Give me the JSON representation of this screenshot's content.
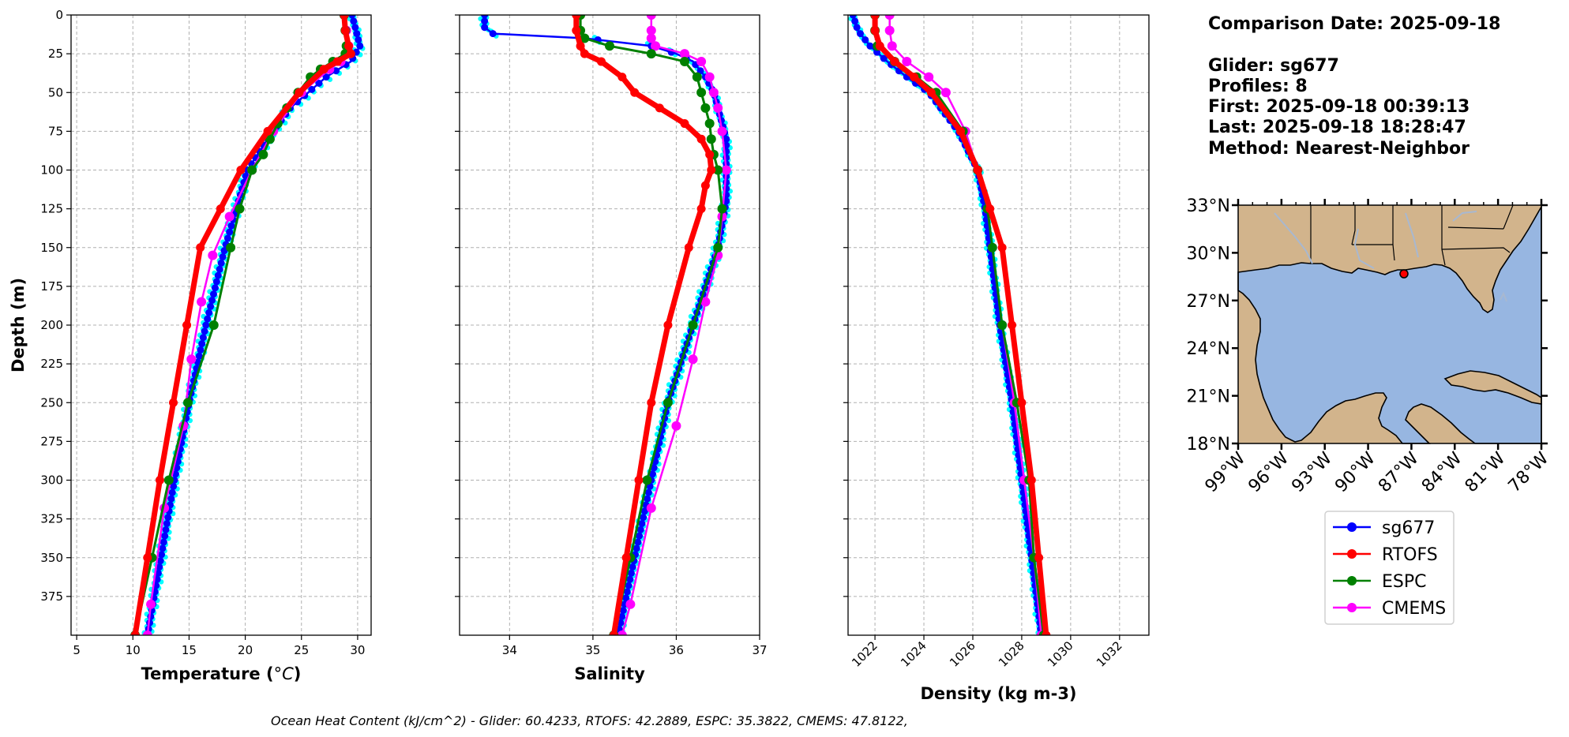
{
  "info": {
    "comparison_date": "Comparison Date: 2025-09-18",
    "glider": "Glider: sg677",
    "profiles": "Profiles: 8",
    "first": "First: 2025-09-18 00:39:13",
    "last": "Last: 2025-09-18 18:28:47",
    "method": "Method: Nearest-Neighbor"
  },
  "footer": "Ocean Heat Content (kJ/cm^2) - Glider: 60.4233,  RTOFS: 42.2889,  ESPC: 35.3822,  CMEMS: 47.8122,",
  "colors": {
    "sg677": "#0000ff",
    "RTOFS": "#ff0000",
    "ESPC": "#008000",
    "CMEMS": "#ff00ff",
    "glider_raw": "#00ffff",
    "land": "#d2b48c",
    "ocean": "#97b6e1"
  },
  "legend": [
    "sg677",
    "RTOFS",
    "ESPC",
    "CMEMS"
  ],
  "map": {
    "lat_ticks": [
      "33°N",
      "30°N",
      "27°N",
      "24°N",
      "21°N",
      "18°N"
    ],
    "lon_ticks": [
      "99°W",
      "96°W",
      "93°W",
      "90°W",
      "87°W",
      "84°W",
      "81°W",
      "78°W"
    ],
    "lon_range": [
      -99,
      -78
    ],
    "lat_range": [
      18,
      33
    ],
    "glider_location": [
      -87.5,
      28.9
    ]
  },
  "chart_data": [
    {
      "type": "line",
      "xlabel": "Temperature (°C)",
      "ylabel": "Depth (m)",
      "xlim": [
        4.5,
        31.2
      ],
      "ylim": [
        400,
        0
      ],
      "xticks": [
        5,
        10,
        15,
        20,
        25,
        30
      ],
      "yticks": [
        0,
        25,
        50,
        75,
        100,
        125,
        150,
        175,
        200,
        225,
        250,
        275,
        300,
        325,
        350,
        375
      ],
      "grid": true,
      "series": [
        {
          "name": "sg677",
          "depth": [
            0,
            20,
            30,
            40,
            60,
            80,
            100,
            120,
            150,
            200,
            250,
            300,
            350,
            400
          ],
          "values": [
            29.5,
            30.2,
            29.4,
            27.2,
            24.0,
            22.0,
            20.2,
            19.4,
            18.2,
            16.5,
            15.0,
            13.7,
            12.5,
            11.3
          ]
        },
        {
          "name": "RTOFS",
          "depth": [
            0,
            10,
            20,
            25,
            30,
            35,
            50,
            75,
            100,
            125,
            150,
            200,
            250,
            300,
            350,
            400
          ],
          "values": [
            28.8,
            28.9,
            29.2,
            29.4,
            28.2,
            27.0,
            24.8,
            22.0,
            19.6,
            17.8,
            16.0,
            14.8,
            13.6,
            12.4,
            11.3,
            10.2
          ]
        },
        {
          "name": "ESPC",
          "depth": [
            0,
            10,
            20,
            25,
            30,
            35,
            40,
            50,
            60,
            70,
            80,
            90,
            100,
            125,
            150,
            200,
            250,
            300,
            350,
            400
          ],
          "values": [
            28.8,
            28.9,
            29.0,
            28.9,
            27.8,
            26.7,
            25.8,
            24.7,
            23.7,
            22.9,
            22.2,
            21.6,
            20.6,
            19.5,
            18.7,
            17.2,
            14.9,
            13.2,
            11.7,
            10.2
          ]
        },
        {
          "name": "CMEMS",
          "depth": [
            0,
            10,
            20,
            25,
            30,
            35,
            50,
            75,
            100,
            130,
            155,
            185,
            222,
            265,
            318,
            380,
            400
          ],
          "values": [
            28.8,
            29.0,
            29.2,
            29.3,
            28.5,
            27.5,
            25.0,
            22.5,
            20.6,
            18.6,
            17.1,
            16.1,
            15.2,
            14.5,
            12.8,
            11.6,
            11.3
          ]
        }
      ]
    },
    {
      "type": "line",
      "xlabel": "Salinity",
      "ylabel": "",
      "xlim": [
        33.4,
        37.0
      ],
      "ylim": [
        400,
        0
      ],
      "xticks": [
        34,
        35,
        36,
        37
      ],
      "yticks": [
        0,
        25,
        50,
        75,
        100,
        125,
        150,
        175,
        200,
        225,
        250,
        275,
        300,
        325,
        350,
        375
      ],
      "grid": true,
      "series": [
        {
          "name": "sg677",
          "depth": [
            0,
            8,
            12,
            15,
            20,
            25,
            30,
            40,
            50,
            60,
            80,
            100,
            120,
            150,
            200,
            250,
            300,
            350,
            400
          ],
          "values": [
            33.7,
            33.7,
            33.8,
            34.9,
            35.7,
            36.0,
            36.2,
            36.35,
            36.45,
            36.5,
            36.6,
            36.6,
            36.6,
            36.5,
            36.2,
            35.9,
            35.7,
            35.5,
            35.3
          ]
        },
        {
          "name": "RTOFS",
          "depth": [
            0,
            10,
            20,
            25,
            30,
            40,
            50,
            60,
            70,
            80,
            90,
            100,
            110,
            125,
            150,
            200,
            250,
            300,
            350,
            400
          ],
          "values": [
            34.8,
            34.8,
            34.85,
            34.9,
            35.1,
            35.35,
            35.5,
            35.8,
            36.1,
            36.3,
            36.4,
            36.42,
            36.35,
            36.3,
            36.15,
            35.9,
            35.7,
            35.55,
            35.4,
            35.25
          ]
        },
        {
          "name": "ESPC",
          "depth": [
            0,
            10,
            15,
            20,
            25,
            30,
            40,
            50,
            60,
            70,
            80,
            90,
            100,
            125,
            150,
            200,
            250,
            300,
            350,
            400
          ],
          "values": [
            34.85,
            34.85,
            34.9,
            35.2,
            35.7,
            36.1,
            36.25,
            36.3,
            36.35,
            36.4,
            36.42,
            36.45,
            36.5,
            36.55,
            36.5,
            36.2,
            35.9,
            35.65,
            35.45,
            35.25
          ]
        },
        {
          "name": "CMEMS",
          "depth": [
            0,
            10,
            15,
            20,
            25,
            30,
            40,
            50,
            60,
            75,
            100,
            130,
            155,
            185,
            222,
            265,
            318,
            380,
            400
          ],
          "values": [
            35.7,
            35.7,
            35.7,
            35.75,
            36.1,
            36.3,
            36.4,
            36.45,
            36.5,
            36.55,
            36.6,
            36.55,
            36.5,
            36.35,
            36.2,
            36.0,
            35.7,
            35.45,
            35.35
          ]
        }
      ]
    },
    {
      "type": "line",
      "xlabel": "Density (kg m-3)",
      "ylabel": "",
      "xlim": [
        1020.9,
        1033.2
      ],
      "ylim": [
        400,
        0
      ],
      "xticks": [
        1022,
        1024,
        1026,
        1028,
        1030,
        1032
      ],
      "yticks": [
        0,
        25,
        50,
        75,
        100,
        125,
        150,
        175,
        200,
        225,
        250,
        275,
        300,
        325,
        350,
        375
      ],
      "grid": true,
      "series": [
        {
          "name": "sg677",
          "depth": [
            0,
            10,
            20,
            30,
            40,
            50,
            75,
            100,
            125,
            150,
            200,
            250,
            300,
            350,
            400
          ],
          "values": [
            1021.1,
            1021.3,
            1021.8,
            1022.5,
            1023.3,
            1024.2,
            1025.4,
            1026.2,
            1026.5,
            1026.7,
            1027.1,
            1027.6,
            1028.0,
            1028.4,
            1028.8
          ]
        },
        {
          "name": "RTOFS",
          "depth": [
            0,
            10,
            20,
            30,
            40,
            50,
            75,
            100,
            125,
            150,
            200,
            250,
            300,
            350,
            400
          ],
          "values": [
            1022.0,
            1022.0,
            1022.2,
            1022.8,
            1023.6,
            1024.3,
            1025.5,
            1026.2,
            1026.7,
            1027.2,
            1027.6,
            1028.0,
            1028.4,
            1028.7,
            1029.0
          ]
        },
        {
          "name": "ESPC",
          "depth": [
            0,
            10,
            20,
            30,
            40,
            50,
            75,
            100,
            125,
            150,
            200,
            250,
            300,
            350,
            400
          ],
          "values": [
            1022.0,
            1022.0,
            1022.1,
            1022.8,
            1023.7,
            1024.5,
            1025.6,
            1026.2,
            1026.6,
            1026.8,
            1027.2,
            1027.8,
            1028.3,
            1028.5,
            1028.9
          ]
        },
        {
          "name": "CMEMS",
          "depth": [
            0,
            10,
            20,
            30,
            40,
            50,
            75,
            100,
            125,
            150,
            200,
            250,
            300,
            350,
            400
          ],
          "values": [
            1022.6,
            1022.6,
            1022.7,
            1023.3,
            1024.2,
            1024.9,
            1025.7,
            1026.2,
            1026.6,
            1026.8,
            1027.2,
            1027.7,
            1028.1,
            1028.5,
            1028.8
          ]
        }
      ]
    }
  ]
}
